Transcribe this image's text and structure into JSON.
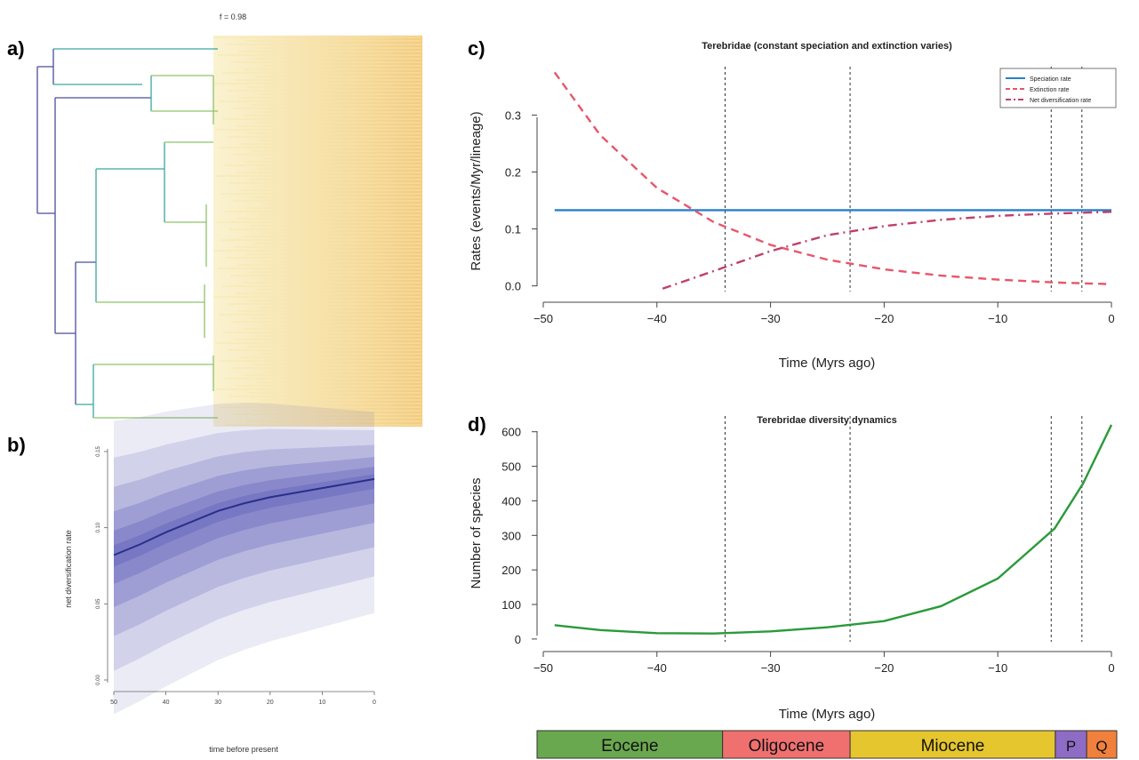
{
  "panels": {
    "a": {
      "letter": "a)"
    },
    "b": {
      "letter": "b)"
    },
    "c": {
      "letter": "c)"
    },
    "d": {
      "letter": "d)"
    }
  },
  "tree": {
    "label": "f = 0.98",
    "color_root": "#4a4d9c",
    "color_mid": "#3aa6a0",
    "color_tips": "#f3c87a"
  },
  "chart_data": [
    {
      "id": "b",
      "type": "line",
      "title": "",
      "xlabel": "time before present",
      "ylabel": "net diversification rate",
      "x_ticks": [
        50,
        40,
        30,
        20,
        10,
        0
      ],
      "y_ticks": [
        0.0,
        0.05,
        0.1,
        0.15
      ],
      "xlim": [
        50,
        0
      ],
      "ylim": [
        -0.005,
        0.16
      ],
      "series": [
        {
          "x": [
            50,
            45,
            40,
            35,
            30,
            25,
            20,
            15,
            10,
            5,
            0
          ],
          "y": [
            0.082,
            0.089,
            0.097,
            0.104,
            0.111,
            0.116,
            0.12,
            0.123,
            0.126,
            0.129,
            0.132
          ]
        }
      ],
      "colors": {
        "line": "#28308a",
        "band": "#5a5ab8"
      }
    },
    {
      "id": "c",
      "type": "line",
      "title": "Terebridae (constant speciation and extinction varies)",
      "xlabel": "Time (Myrs ago)",
      "ylabel": "Rates (events/Myr/lineage)",
      "x_ticks": [
        -50,
        -40,
        -30,
        -20,
        -10,
        0
      ],
      "y_ticks": [
        0.0,
        0.1,
        0.2,
        0.3
      ],
      "xlim": [
        -50,
        0
      ],
      "ylim": [
        -0.01,
        0.385
      ],
      "vlines": [
        -34,
        -23,
        -5.3,
        -2.6
      ],
      "legend_position": "top-right",
      "series": [
        {
          "name": "Speciation rate",
          "color": "#2a7fc8",
          "style": "solid",
          "x": [
            -49,
            0
          ],
          "y": [
            0.133,
            0.133
          ]
        },
        {
          "name": "Extinction rate",
          "color": "#e8556a",
          "style": "dashed",
          "x": [
            -49,
            -45,
            -40,
            -35,
            -30,
            -25,
            -20,
            -15,
            -10,
            -5,
            0
          ],
          "y": [
            0.375,
            0.265,
            0.172,
            0.112,
            0.072,
            0.046,
            0.029,
            0.018,
            0.011,
            0.006,
            0.003
          ]
        },
        {
          "name": "Net diversification rate",
          "color": "#c0406a",
          "style": "dashdot",
          "x": [
            -39.5,
            -35,
            -30,
            -25,
            -20,
            -15,
            -10,
            -5,
            0
          ],
          "y": [
            -0.005,
            0.026,
            0.061,
            0.089,
            0.105,
            0.116,
            0.123,
            0.127,
            0.13
          ]
        }
      ]
    },
    {
      "id": "d",
      "type": "line",
      "title": "Terebridae diversity dynamics",
      "xlabel": "Time (Myrs ago)",
      "ylabel": "Number of species",
      "x_ticks": [
        -50,
        -40,
        -30,
        -20,
        -10,
        0
      ],
      "y_ticks": [
        0,
        100,
        200,
        300,
        400,
        500,
        600
      ],
      "xlim": [
        -50,
        0
      ],
      "ylim": [
        -8,
        625
      ],
      "vlines": [
        -34,
        -23,
        -5.3,
        -2.6
      ],
      "series": [
        {
          "name": "",
          "color": "#2a9a3a",
          "style": "solid",
          "x": [
            -49,
            -45,
            -40,
            -35,
            -30,
            -25,
            -20,
            -15,
            -10,
            -5,
            -2.5,
            0
          ],
          "y": [
            40,
            26,
            17,
            16,
            22,
            34,
            52,
            95,
            175,
            320,
            450,
            620
          ]
        }
      ]
    }
  ],
  "timescale": [
    {
      "label": "Eocene",
      "start": -50,
      "end": -34,
      "color": "#6aa84f"
    },
    {
      "label": "Oligocene",
      "start": -34,
      "end": -23,
      "color": "#f07070"
    },
    {
      "label": "Miocene",
      "start": -23,
      "end": -5.3,
      "color": "#e5c62e"
    },
    {
      "label": "P",
      "start": -5.3,
      "end": -2.6,
      "color": "#8e6cc5"
    },
    {
      "label": "Q",
      "start": -2.6,
      "end": 0,
      "color": "#f0803c"
    }
  ]
}
